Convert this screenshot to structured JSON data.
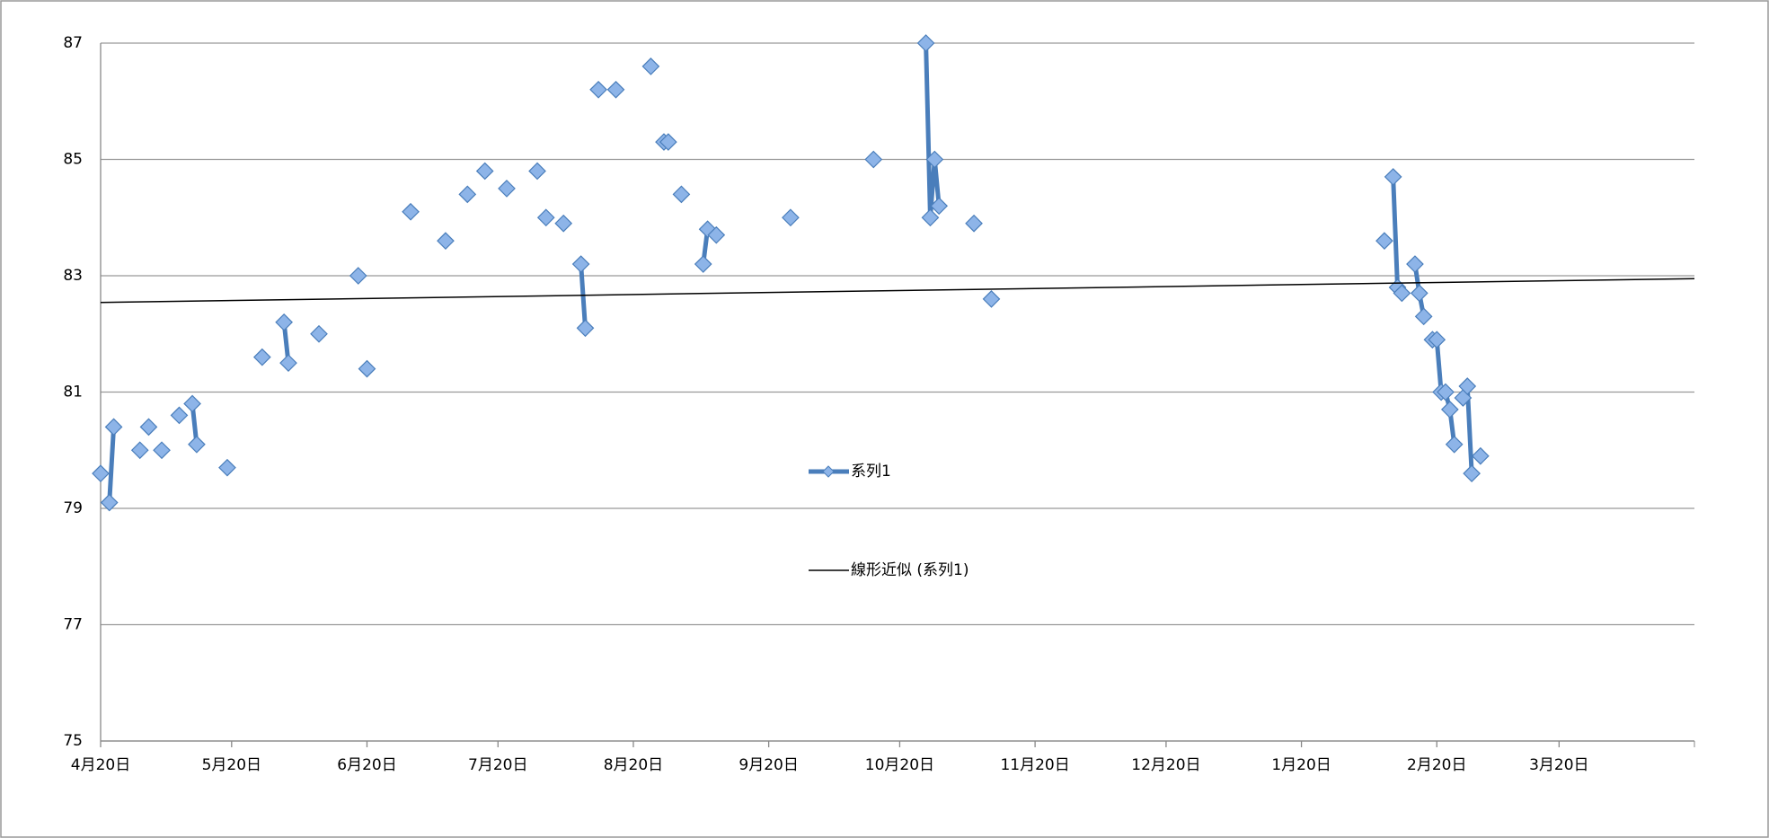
{
  "chart_data": {
    "type": "line",
    "xlim": [
      0,
      365
    ],
    "xticks": [
      {
        "value": 0,
        "label": "4月20日"
      },
      {
        "value": 30,
        "label": "5月20日"
      },
      {
        "value": 61,
        "label": "6月20日"
      },
      {
        "value": 91,
        "label": "7月20日"
      },
      {
        "value": 122,
        "label": "8月20日"
      },
      {
        "value": 153,
        "label": "9月20日"
      },
      {
        "value": 183,
        "label": "10月20日"
      },
      {
        "value": 214,
        "label": "11月20日"
      },
      {
        "value": 244,
        "label": "12月20日"
      },
      {
        "value": 275,
        "label": "1月20日"
      },
      {
        "value": 306,
        "label": "2月20日"
      },
      {
        "value": 334,
        "label": "3月20日"
      }
    ],
    "ylim": [
      75,
      87
    ],
    "yticks": [
      75,
      77,
      79,
      81,
      83,
      85,
      87
    ],
    "grid": true,
    "series": [
      {
        "name": "系列1",
        "color": "#4a7ebb",
        "marker": "diamond",
        "x": [
          0,
          null,
          2,
          3,
          null,
          9,
          null,
          11,
          null,
          14,
          null,
          18,
          null,
          21,
          22,
          null,
          29,
          null,
          37,
          null,
          42,
          43,
          null,
          50,
          null,
          59,
          null,
          61,
          null,
          71,
          null,
          79,
          null,
          84,
          null,
          88,
          null,
          93,
          null,
          100,
          null,
          102,
          null,
          106,
          null,
          110,
          111,
          null,
          114,
          null,
          118,
          null,
          126,
          null,
          129,
          130,
          null,
          133,
          null,
          138,
          139,
          null,
          141,
          null,
          158,
          null,
          177,
          null,
          189,
          190,
          191,
          192,
          null,
          200,
          null,
          204,
          null,
          294,
          null,
          296,
          297,
          298,
          null,
          301,
          302,
          303,
          null,
          305,
          306,
          307,
          308,
          309,
          310,
          null,
          312,
          313,
          314,
          null,
          316
        ],
        "values": [
          79.6,
          null,
          79.1,
          80.4,
          null,
          80.0,
          null,
          80.4,
          null,
          80.0,
          null,
          80.6,
          null,
          80.8,
          80.1,
          null,
          79.7,
          null,
          81.6,
          null,
          82.2,
          81.5,
          null,
          82.0,
          null,
          83.0,
          null,
          81.4,
          null,
          84.1,
          null,
          83.6,
          null,
          84.4,
          null,
          84.8,
          null,
          84.5,
          null,
          84.8,
          null,
          84.0,
          null,
          83.9,
          null,
          83.2,
          82.1,
          null,
          86.2,
          null,
          86.2,
          null,
          86.6,
          null,
          85.3,
          85.3,
          null,
          84.4,
          null,
          83.2,
          83.8,
          null,
          83.7,
          null,
          84.0,
          null,
          85.0,
          null,
          87.0,
          84.0,
          85.0,
          84.2,
          null,
          83.9,
          null,
          82.6,
          null,
          83.6,
          null,
          84.7,
          82.8,
          82.7,
          null,
          83.2,
          82.7,
          82.3,
          null,
          81.9,
          81.9,
          81.0,
          81.0,
          80.7,
          80.1,
          null,
          80.9,
          81.1,
          79.6,
          null,
          79.9
        ]
      },
      {
        "name": "線形近似 (系列1)",
        "color": "#000000",
        "marker": "none",
        "x": [
          0,
          365
        ],
        "values": [
          82.54,
          82.95
        ]
      }
    ]
  }
}
